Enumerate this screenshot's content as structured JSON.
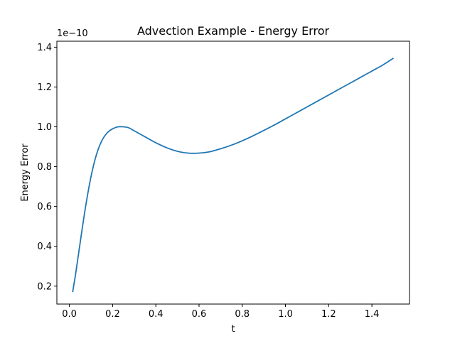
{
  "chart_data": {
    "type": "line",
    "title": "Advection Example - Energy Error",
    "xlabel": "t",
    "ylabel": "Energy Error",
    "y_offset_label": "1e−10",
    "xlim": [
      -0.058,
      1.574
    ],
    "ylim": [
      0.11,
      1.43
    ],
    "x_ticks": [
      0.0,
      0.2,
      0.4,
      0.6,
      0.8,
      1.0,
      1.2,
      1.4
    ],
    "x_tick_labels": [
      "0.0",
      "0.2",
      "0.4",
      "0.6",
      "0.8",
      "1.0",
      "1.2",
      "1.4"
    ],
    "y_ticks": [
      0.2,
      0.4,
      0.6,
      0.8,
      1.0,
      1.2,
      1.4
    ],
    "y_tick_labels": [
      "0.2",
      "0.4",
      "0.6",
      "0.8",
      "1.0",
      "1.2",
      "1.4"
    ],
    "grid": false,
    "series": [
      {
        "color": "#1f77b4",
        "x": [
          0.015,
          0.03,
          0.05,
          0.075,
          0.1,
          0.125,
          0.15,
          0.175,
          0.2,
          0.225,
          0.25,
          0.275,
          0.3,
          0.35,
          0.4,
          0.45,
          0.5,
          0.55,
          0.6,
          0.65,
          0.7,
          0.75,
          0.8,
          0.85,
          0.9,
          0.95,
          1.0,
          1.05,
          1.1,
          1.15,
          1.2,
          1.25,
          1.3,
          1.35,
          1.4,
          1.45,
          1.5
        ],
        "y": [
          0.17,
          0.27,
          0.42,
          0.6,
          0.75,
          0.86,
          0.93,
          0.97,
          0.99,
          1.0,
          1.0,
          0.995,
          0.98,
          0.95,
          0.92,
          0.895,
          0.877,
          0.868,
          0.868,
          0.875,
          0.89,
          0.908,
          0.93,
          0.955,
          0.982,
          1.01,
          1.04,
          1.07,
          1.1,
          1.13,
          1.16,
          1.19,
          1.22,
          1.25,
          1.28,
          1.31,
          1.345
        ]
      }
    ]
  }
}
